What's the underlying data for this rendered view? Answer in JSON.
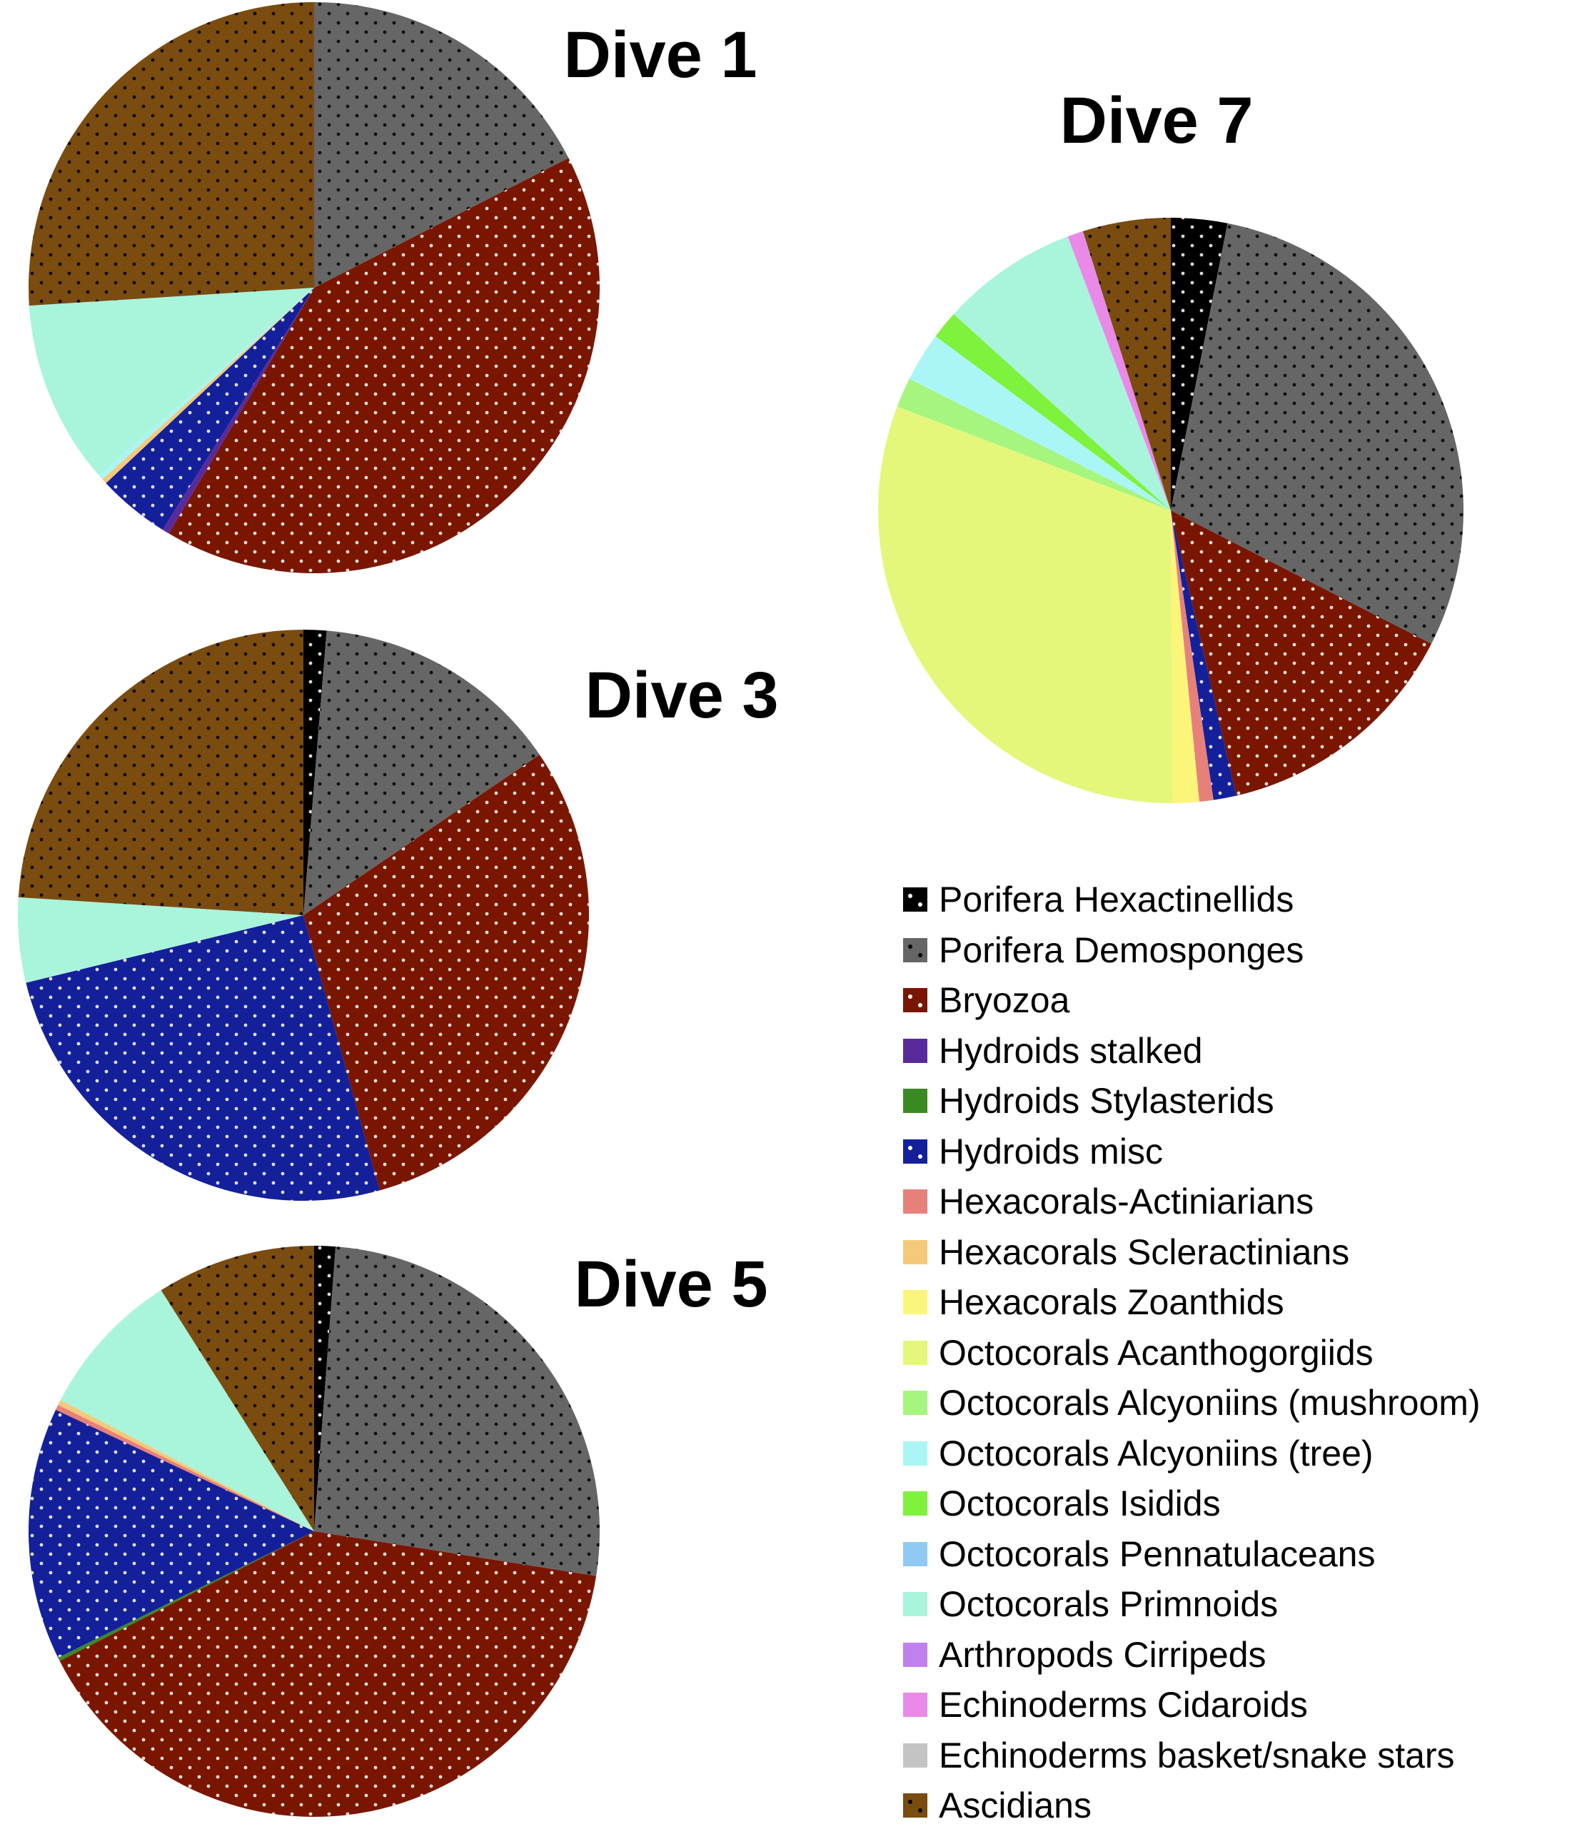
{
  "legend": [
    {
      "name": "Porifera Hexactinellids",
      "color": "#000000",
      "pattern": "dots-white"
    },
    {
      "name": "Porifera Demosponges",
      "color": "#666666",
      "pattern": "dots-black"
    },
    {
      "name": "Bryozoa",
      "color": "#7a1600",
      "pattern": "dots-white"
    },
    {
      "name": "Hydroids stalked",
      "color": "#5b2a9a",
      "pattern": "none"
    },
    {
      "name": "Hydroids Stylasterids",
      "color": "#3a8a23",
      "pattern": "none"
    },
    {
      "name": "Hydroids misc",
      "color": "#14209a",
      "pattern": "dots-white"
    },
    {
      "name": "Hexacorals-Actiniarians",
      "color": "#e8807a",
      "pattern": "none"
    },
    {
      "name": "Hexacorals Scleractinians",
      "color": "#f4c97a",
      "pattern": "none"
    },
    {
      "name": "Hexacorals Zoanthids",
      "color": "#fbf57a",
      "pattern": "none"
    },
    {
      "name": "Octocorals Acanthogorgiids",
      "color": "#e4f77a",
      "pattern": "none"
    },
    {
      "name": "Octocorals Alcyoniins (mushroom)",
      "color": "#a6f57f",
      "pattern": "none"
    },
    {
      "name": "Octocorals Alcyoniins (tree)",
      "color": "#aaf6f6",
      "pattern": "none"
    },
    {
      "name": "Octocorals Isidids",
      "color": "#7ef23c",
      "pattern": "none"
    },
    {
      "name": "Octocorals Pennatulaceans",
      "color": "#8fcaf2",
      "pattern": "none"
    },
    {
      "name": "Octocorals Primnoids",
      "color": "#a8f5dc",
      "pattern": "none"
    },
    {
      "name": "Arthropods Cirripeds",
      "color": "#c080ee",
      "pattern": "none"
    },
    {
      "name": "Echinoderms Cidaroids",
      "color": "#e98ae9",
      "pattern": "none"
    },
    {
      "name": "Echinoderms basket/snake stars",
      "color": "#c4c4c4",
      "pattern": "none"
    },
    {
      "name": "Ascidians",
      "color": "#7a4c10",
      "pattern": "dots-black"
    }
  ],
  "chart_data": [
    {
      "type": "pie",
      "title": "Dive 1",
      "slices": [
        {
          "category": "Porifera Demosponges",
          "value": 17.5
        },
        {
          "category": "Bryozoa",
          "value": 41.0
        },
        {
          "category": "Hydroids stalked",
          "value": 0.4
        },
        {
          "category": "Hydroids misc",
          "value": 4.1
        },
        {
          "category": "Hexacorals Scleractinians",
          "value": 0.3
        },
        {
          "category": "Octocorals Alcyoniins (tree)",
          "value": 0.3
        },
        {
          "category": "Octocorals Primnoids",
          "value": 10.4
        },
        {
          "category": "Ascidians",
          "value": 26.0
        }
      ]
    },
    {
      "type": "pie",
      "title": "Dive 3",
      "slices": [
        {
          "category": "Porifera Hexactinellids",
          "value": 1.3
        },
        {
          "category": "Porifera Demosponges",
          "value": 14.2
        },
        {
          "category": "Bryozoa",
          "value": 30.2
        },
        {
          "category": "Hydroids misc",
          "value": 25.5
        },
        {
          "category": "Octocorals Primnoids",
          "value": 4.8
        },
        {
          "category": "Ascidians",
          "value": 24.0
        }
      ]
    },
    {
      "type": "pie",
      "title": "Dive 5",
      "slices": [
        {
          "category": "Porifera Hexactinellids",
          "value": 1.2
        },
        {
          "category": "Porifera Demosponges",
          "value": 26.3
        },
        {
          "category": "Bryozoa",
          "value": 40.0
        },
        {
          "category": "Hydroids Stylasterids",
          "value": 0.2
        },
        {
          "category": "Hydroids misc",
          "value": 14.3
        },
        {
          "category": "Hexacorals-Actiniarians",
          "value": 0.3
        },
        {
          "category": "Hexacorals Scleractinians",
          "value": 0.3
        },
        {
          "category": "Octocorals Primnoids",
          "value": 8.4
        },
        {
          "category": "Ascidians",
          "value": 9.0
        }
      ]
    },
    {
      "type": "pie",
      "title": "Dive 7",
      "slices": [
        {
          "category": "Porifera Hexactinellids",
          "value": 3.2
        },
        {
          "category": "Porifera Demosponges",
          "value": 30.3
        },
        {
          "category": "Bryozoa",
          "value": 14.3
        },
        {
          "category": "Hydroids misc",
          "value": 1.3
        },
        {
          "category": "Hexacorals-Actiniarians",
          "value": 0.8
        },
        {
          "category": "Hexacorals Zoanthids",
          "value": 1.5
        },
        {
          "category": "Octocorals Acanthogorgiids",
          "value": 31.8
        },
        {
          "category": "Octocorals Alcyoniins (mushroom)",
          "value": 1.7
        },
        {
          "category": "Octocorals Alcyoniins (tree)",
          "value": 2.8
        },
        {
          "category": "Octocorals Isidids",
          "value": 1.6
        },
        {
          "category": "Octocorals Primnoids",
          "value": 7.8
        },
        {
          "category": "Echinoderms Cidaroids",
          "value": 0.9
        },
        {
          "category": "Ascidians",
          "value": 5.0
        }
      ]
    }
  ]
}
